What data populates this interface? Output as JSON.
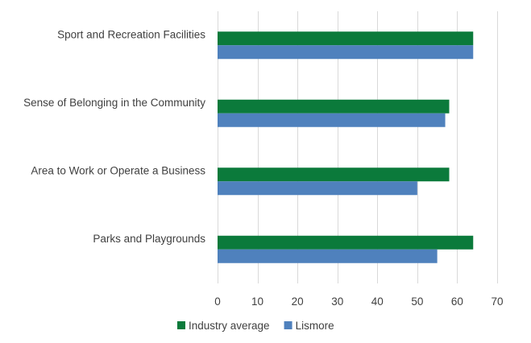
{
  "chart_data": {
    "type": "bar",
    "orientation": "horizontal",
    "categories": [
      "Sport and Recreation Facilities",
      "Sense of Belonging in the Community",
      "Area to Work or Operate a Business",
      "Parks and Playgrounds"
    ],
    "series": [
      {
        "name": "Industry average",
        "color": "#0b7a3b",
        "values": [
          64,
          58,
          58,
          64
        ]
      },
      {
        "name": "Lismore",
        "color": "#4f81bd",
        "values": [
          64,
          57,
          50,
          55
        ]
      }
    ],
    "xlim": [
      0,
      70
    ],
    "xticks": [
      "0",
      "10",
      "20",
      "30",
      "40",
      "50",
      "60",
      "70"
    ],
    "grid": "vertical",
    "legend_position": "bottom"
  }
}
